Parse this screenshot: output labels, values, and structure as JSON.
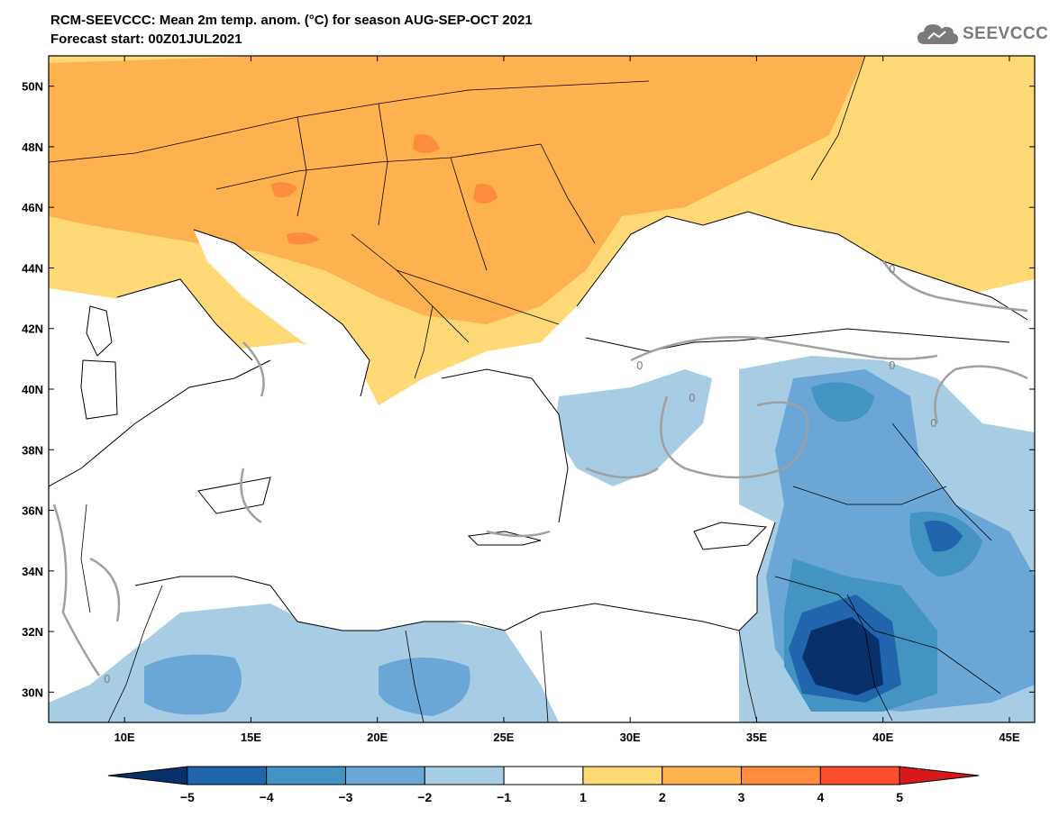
{
  "header": {
    "title_line1": "RCM-SEEVCCC: Mean 2m temp. anom. (°C) for season AUG-SEP-OCT 2021",
    "title_line2": "Forecast start: 00Z01JUL2021"
  },
  "logo": {
    "text": "SEEVCCC",
    "icon": "cloud-icon"
  },
  "map": {
    "lon_range": [
      7,
      46
    ],
    "lat_range": [
      29,
      51
    ],
    "lat_ticks": [
      "30N",
      "32N",
      "34N",
      "36N",
      "38N",
      "40N",
      "42N",
      "44N",
      "46N",
      "48N",
      "50N"
    ],
    "lon_ticks": [
      "10E",
      "15E",
      "20E",
      "25E",
      "30E",
      "35E",
      "40E",
      "45E"
    ],
    "contour_label": "0"
  },
  "colorbar": {
    "labels": [
      "−5",
      "−4",
      "−3",
      "−2",
      "−1",
      "1",
      "2",
      "3",
      "4",
      "5"
    ],
    "colors": [
      "#08306b",
      "#2166ac",
      "#4393c3",
      "#6aa7d6",
      "#a6cde3",
      "#ffffff",
      "#fed976",
      "#fdb14f",
      "#fd8d3c",
      "#fc4e2a",
      "#d7191c"
    ]
  }
}
